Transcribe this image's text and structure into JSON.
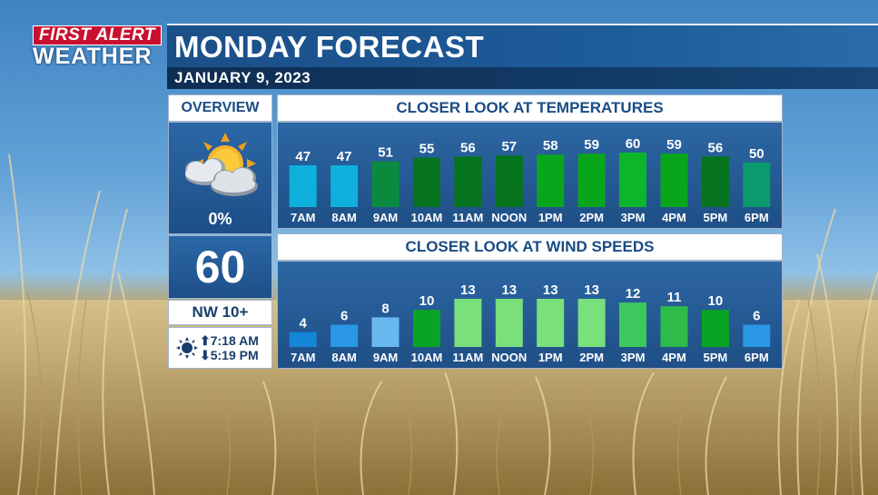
{
  "logo": {
    "line1": "FIRST ALERT",
    "line2": "WEATHER"
  },
  "header": {
    "title": "MONDAY FORECAST",
    "date": "JANUARY 9, 2023"
  },
  "overview": {
    "label": "OVERVIEW",
    "icon": "partly-sunny-icon",
    "precip_chance": "0%",
    "high_temp": "60",
    "wind": "NW 10+",
    "sunrise": "7:18 AM",
    "sunset": "5:19 PM"
  },
  "temperature_panel": {
    "title": "CLOSER LOOK AT TEMPERATURES"
  },
  "wind_panel": {
    "title": "CLOSER LOOK AT WIND SPEEDS"
  },
  "colors": {
    "title_bar": "#1d5b99",
    "date_bar": "#123a66",
    "logo_red": "#c8102e",
    "panel_blue": "#2c66a3"
  },
  "chart_data": [
    {
      "type": "bar",
      "title": "CLOSER LOOK AT TEMPERATURES",
      "categories": [
        "7AM",
        "8AM",
        "9AM",
        "10AM",
        "11AM",
        "NOON",
        "1PM",
        "2PM",
        "3PM",
        "4PM",
        "5PM",
        "6PM"
      ],
      "values": [
        47,
        47,
        51,
        55,
        56,
        57,
        58,
        59,
        60,
        59,
        56,
        50
      ],
      "bar_colors": [
        "#0fb0dc",
        "#0fb0dc",
        "#0a8a3e",
        "#06731f",
        "#06731f",
        "#06731f",
        "#09a61c",
        "#09a61c",
        "#0cb52a",
        "#09a61c",
        "#06731f",
        "#0a9a6e"
      ],
      "ylim": [
        0,
        60
      ],
      "grid": false,
      "data_labels": true
    },
    {
      "type": "bar",
      "title": "CLOSER LOOK AT WIND SPEEDS",
      "categories": [
        "7AM",
        "8AM",
        "9AM",
        "10AM",
        "11AM",
        "NOON",
        "1PM",
        "2PM",
        "3PM",
        "4PM",
        "5PM",
        "6PM"
      ],
      "values": [
        4,
        6,
        8,
        10,
        13,
        13,
        13,
        13,
        12,
        11,
        10,
        6
      ],
      "bar_colors": [
        "#1586d8",
        "#2a96e6",
        "#6ab8f0",
        "#0aa424",
        "#79e07c",
        "#79e07c",
        "#79e07c",
        "#79e07c",
        "#3cc85c",
        "#2fbb4a",
        "#0aa424",
        "#2a96e6"
      ],
      "ylim": [
        0,
        13
      ],
      "grid": false,
      "data_labels": true
    }
  ]
}
